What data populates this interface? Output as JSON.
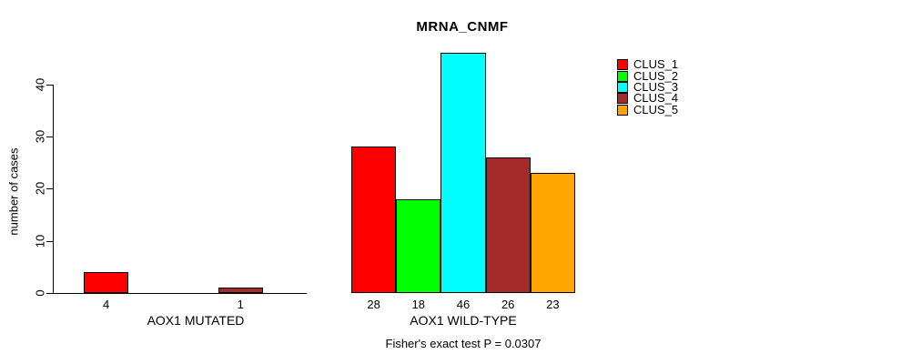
{
  "chart_data": {
    "type": "bar",
    "title": "MRNA_CNMF",
    "ylabel": "number of cases",
    "xlabel": "",
    "categories": [
      "AOX1 MUTATED",
      "AOX1 WILD-TYPE"
    ],
    "series": [
      {
        "name": "CLUS_1",
        "color": "#ff0000",
        "values": [
          4,
          28
        ]
      },
      {
        "name": "CLUS_2",
        "color": "#00ff00",
        "values": [
          0,
          18
        ]
      },
      {
        "name": "CLUS_3",
        "color": "#00ffff",
        "values": [
          0,
          46
        ]
      },
      {
        "name": "CLUS_4",
        "color": "#a52a2a",
        "values": [
          1,
          26
        ]
      },
      {
        "name": "CLUS_5",
        "color": "#ffa500",
        "values": [
          0,
          23
        ]
      }
    ],
    "yticks": [
      0,
      10,
      20,
      30,
      40
    ],
    "ylim": [
      0,
      46
    ],
    "grid": false,
    "legend_position": "top-right",
    "bar_value_labels_shown": true,
    "annotation": "Fisher's exact test P = 0.0307"
  }
}
